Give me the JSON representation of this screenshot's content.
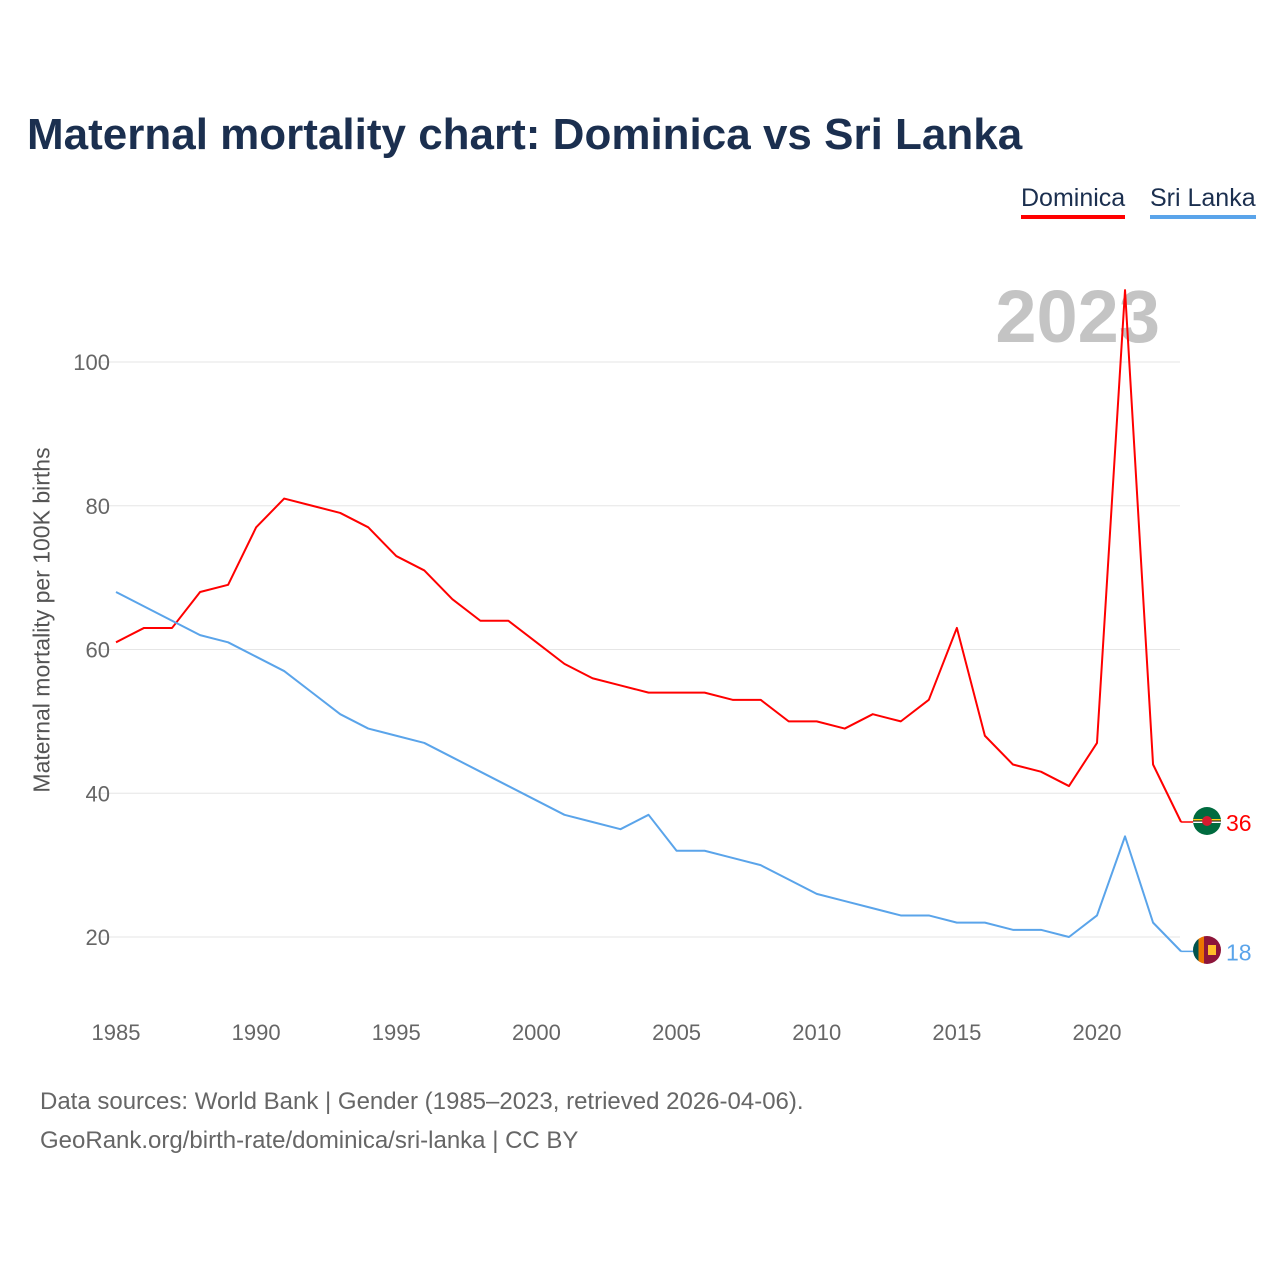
{
  "title": "Maternal mortality chart: Dominica vs Sri Lanka",
  "year_label": "2023",
  "footer": {
    "line1": "Data sources: World Bank | Gender (1985–2023, retrieved 2026-04-06).",
    "line2": "GeoRank.org/birth-rate/dominica/sri-lanka | CC BY"
  },
  "chart_data": {
    "type": "line",
    "title": "Maternal mortality chart: Dominica vs Sri Lanka",
    "xlabel": "",
    "ylabel": "Maternal mortality per 100K births",
    "xlim": [
      1985,
      2023
    ],
    "ylim": [
      10,
      115
    ],
    "x_ticks": [
      1985,
      1990,
      1995,
      2000,
      2005,
      2010,
      2015,
      2020
    ],
    "y_ticks": [
      20,
      40,
      60,
      80,
      100
    ],
    "grid": "horizontal",
    "legend_position": "top-right",
    "x": [
      1985,
      1986,
      1987,
      1988,
      1989,
      1990,
      1991,
      1992,
      1993,
      1994,
      1995,
      1996,
      1997,
      1998,
      1999,
      2000,
      2001,
      2002,
      2003,
      2004,
      2005,
      2006,
      2007,
      2008,
      2009,
      2010,
      2011,
      2012,
      2013,
      2014,
      2015,
      2016,
      2017,
      2018,
      2019,
      2020,
      2021,
      2022,
      2023
    ],
    "series": [
      {
        "name": "Dominica",
        "color": "#ff0000",
        "end_label": "36",
        "values": [
          61,
          63,
          63,
          68,
          69,
          77,
          81,
          80,
          79,
          77,
          73,
          71,
          67,
          64,
          64,
          61,
          58,
          56,
          55,
          54,
          54,
          54,
          53,
          53,
          50,
          50,
          49,
          51,
          50,
          53,
          63,
          48,
          44,
          43,
          41,
          47,
          110,
          44,
          36
        ]
      },
      {
        "name": "Sri Lanka",
        "color": "#5aa4ea",
        "end_label": "18",
        "values": [
          68,
          66,
          64,
          62,
          61,
          59,
          57,
          54,
          51,
          49,
          48,
          47,
          45,
          43,
          41,
          39,
          37,
          36,
          35,
          37,
          32,
          32,
          31,
          30,
          28,
          26,
          25,
          24,
          23,
          23,
          22,
          22,
          21,
          21,
          20,
          23,
          34,
          22,
          18
        ]
      }
    ]
  }
}
